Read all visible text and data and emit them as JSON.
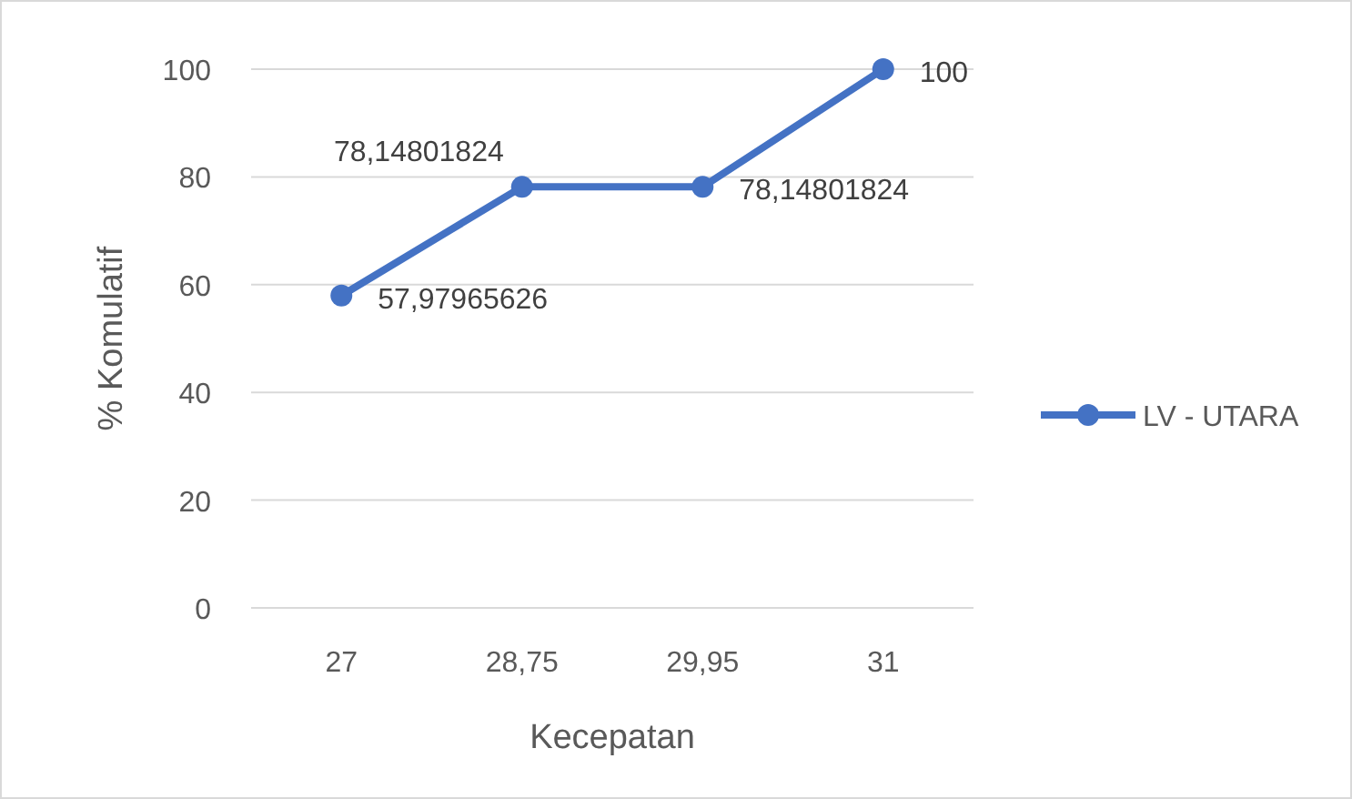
{
  "chart_data": {
    "type": "line",
    "xlabel": "Kecepatan",
    "ylabel": "% Komulatif",
    "categories": [
      "27",
      "28,75",
      "29,95",
      "31"
    ],
    "series": [
      {
        "name": "LV - UTARA",
        "color": "#4472c4",
        "values": [
          57.97965626,
          78.14801824,
          78.14801824,
          100
        ],
        "value_labels": [
          "57,97965626",
          "78,14801824",
          "78,14801824",
          "100"
        ]
      }
    ],
    "ylim": [
      0,
      100
    ],
    "yticks": [
      0,
      20,
      40,
      60,
      80,
      100
    ],
    "grid": "y",
    "legend": "right",
    "marker": "circle",
    "line_style": "solid"
  }
}
